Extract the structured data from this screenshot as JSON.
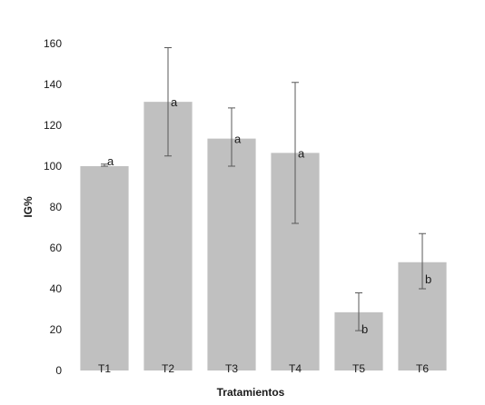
{
  "chart_data": {
    "type": "bar",
    "categories": [
      "T1",
      "T2",
      "T3",
      "T4",
      "T5",
      "T6"
    ],
    "values": [
      100,
      131.5,
      113.5,
      106.5,
      28.5,
      53
    ],
    "error_bars": [
      {
        "low": 100,
        "high": 101
      },
      {
        "low": 105,
        "high": 158
      },
      {
        "low": 100,
        "high": 128.5
      },
      {
        "low": 72,
        "high": 141
      },
      {
        "low": 19.5,
        "high": 38
      },
      {
        "low": 40,
        "high": 67
      }
    ],
    "significance_letters": [
      "a",
      "a",
      "a",
      "a",
      "b",
      "b"
    ],
    "xlabel": "Tratamientos",
    "ylabel": "IG%",
    "ylim": [
      0,
      160
    ],
    "yticks": [
      0,
      20,
      40,
      60,
      80,
      100,
      120,
      140,
      160
    ],
    "grid": false,
    "legend": "none",
    "colors": {
      "bar": "#c0c0c0",
      "error_bar": "#595959",
      "text": "#1a1a1a"
    }
  }
}
